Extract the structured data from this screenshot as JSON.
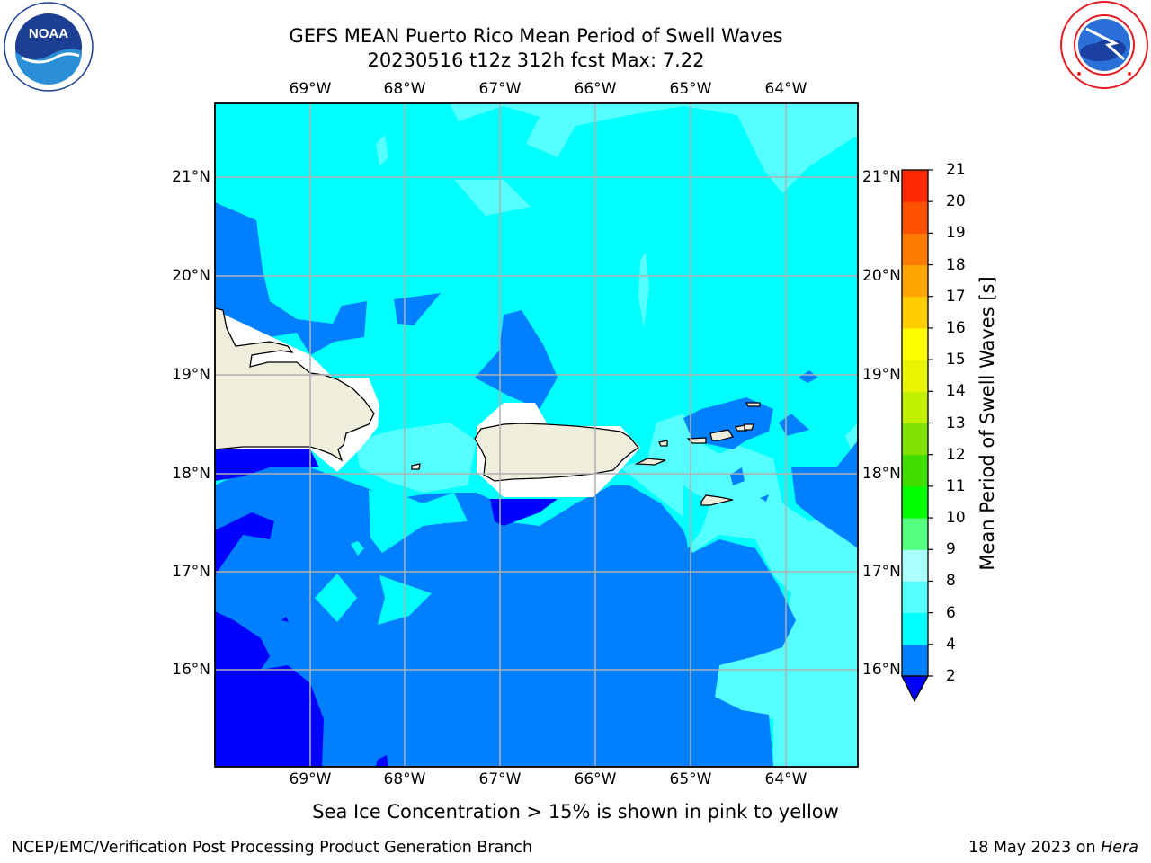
{
  "header": {
    "title_line1": "GEFS MEAN Puerto Rico Mean Period of Swell Waves",
    "title_line2": "20230516 t12z 312h fcst   Max: 7.22"
  },
  "logos": {
    "left": {
      "name": "noaa-logo",
      "text": "NOAA",
      "ring_text": "NATIONAL OCEANIC AND ATMOSPHERIC ADMINISTRATION · U.S. DEPARTMENT OF COMMERCE"
    },
    "right": {
      "name": "nws-logo",
      "ring_text": "NATIONAL WEATHER SERVICE"
    }
  },
  "map": {
    "lon_ticks": [
      "69°W",
      "68°W",
      "67°W",
      "66°W",
      "65°W",
      "64°W"
    ],
    "lat_ticks": [
      "21°N",
      "20°N",
      "19°N",
      "18°N",
      "17°N",
      "16°N"
    ],
    "grid": true,
    "land_color": "#efeddc",
    "coast_color": "#000000"
  },
  "colorbar": {
    "title": "Mean Period of Swell Waves [s]",
    "labels": [
      "2",
      "4",
      "6",
      "8",
      "9",
      "10",
      "11",
      "12",
      "13",
      "14",
      "15",
      "16",
      "17",
      "18",
      "19",
      "20",
      "21"
    ],
    "colors": [
      "#0000ff",
      "#0080ff",
      "#00ffff",
      "#55ffff",
      "#aaffff",
      "#55ff80",
      "#00ff00",
      "#40dd00",
      "#80e000",
      "#c0f000",
      "#e8f400",
      "#ffff00",
      "#ffcc00",
      "#ffa500",
      "#ff7b00",
      "#ff5000",
      "#ff2800",
      "#ff0000"
    ],
    "extend_color": "#0000ff"
  },
  "note": "Sea Ice Concentration > 15% is shown in pink to yellow",
  "footer": {
    "left": "NCEP/EMC/Verification Post Processing Product Generation Branch",
    "date": "18 May 2023 on ",
    "host": "Hera"
  }
}
